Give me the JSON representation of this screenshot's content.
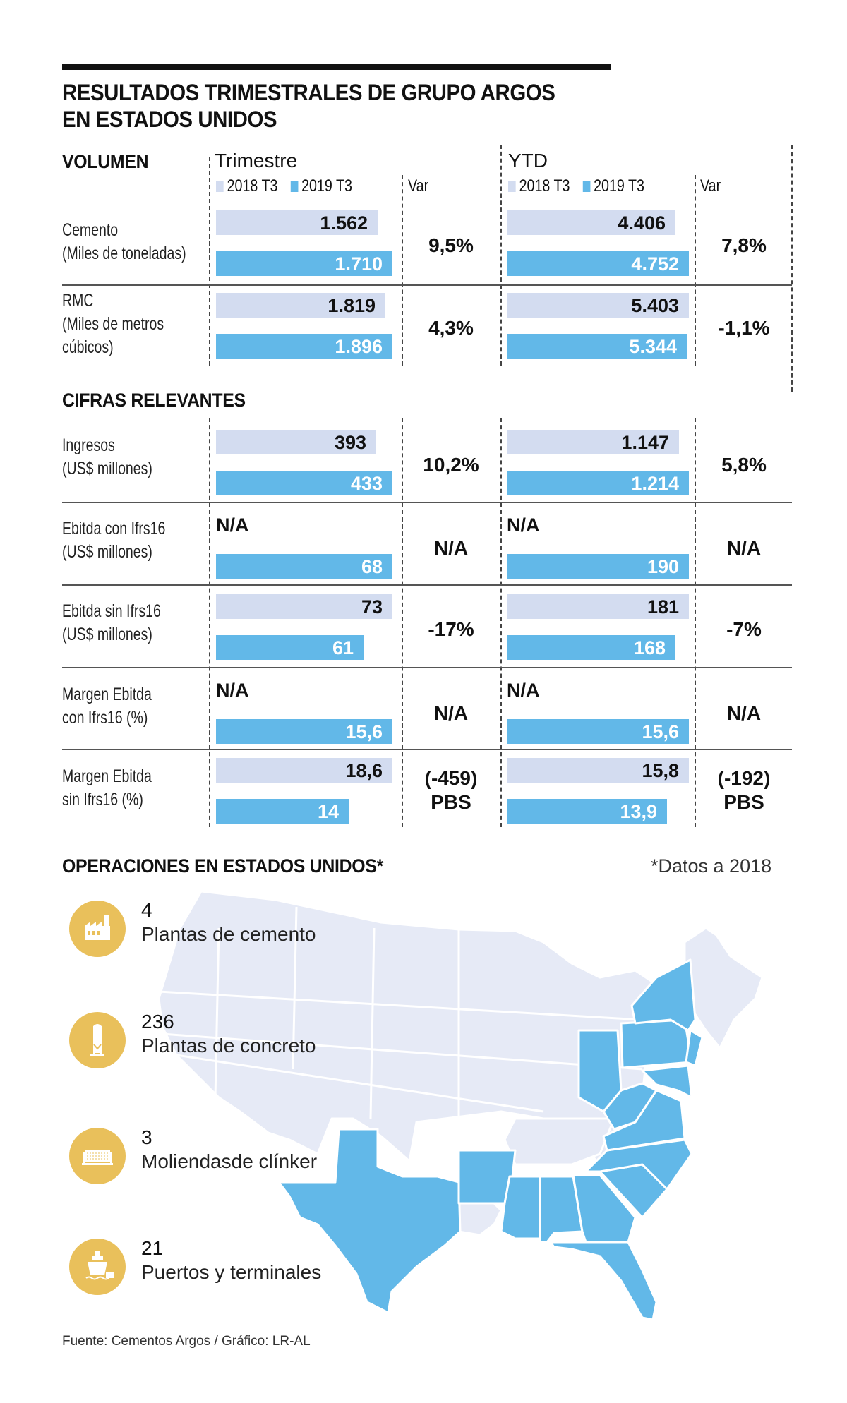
{
  "title": {
    "line1": "RESULTADOS TRIMESTRALES DE GRUPO ARGOS",
    "line2": "EN ESTADOS UNIDOS"
  },
  "colors": {
    "bar_2018": "#d3dcf0",
    "bar_2019": "#62b8e8",
    "icon_circle": "#e9c05b",
    "map_base": "#e6eaf6",
    "map_highlight": "#62b8e8"
  },
  "headers": {
    "trimestre": "Trimestre",
    "ytd": "YTD",
    "var": "Var",
    "legend_2018": "2018 T3",
    "legend_2019": "2019 T3"
  },
  "sections": {
    "volumen": "VOLUMEN",
    "cifras": "CIFRAS RELEVANTES",
    "operaciones": "OPERACIONES EN ESTADOS UNIDOS*",
    "operaciones_note": "*Datos a 2018"
  },
  "chart_data": {
    "type": "bar",
    "title": "RESULTADOS TRIMESTRALES DE GRUPO ARGOS EN ESTADOS UNIDOS",
    "series_names": [
      "2018 T3",
      "2019 T3"
    ],
    "rows": [
      {
        "group": "VOLUMEN",
        "label_line1": "Cemento",
        "label_line2": "(Miles de toneladas)",
        "label_line3": "",
        "trimestre": {
          "v2018": 1562,
          "t2018": "1.562",
          "v2019": 1710,
          "t2019": "1.710",
          "var": "9,5%",
          "var2": ""
        },
        "ytd": {
          "v2018": 4406,
          "t2018": "4.406",
          "v2019": 4752,
          "t2019": "4.752",
          "var": "7,8%",
          "var2": ""
        }
      },
      {
        "group": "VOLUMEN",
        "label_line1": "RMC",
        "label_line2": "(Miles de metros",
        "label_line3": "cúbicos)",
        "trimestre": {
          "v2018": 1819,
          "t2018": "1.819",
          "v2019": 1896,
          "t2019": "1.896",
          "var": "4,3%",
          "var2": ""
        },
        "ytd": {
          "v2018": 5403,
          "t2018": "5.403",
          "v2019": 5344,
          "t2019": "5.344",
          "var": "-1,1%",
          "var2": ""
        }
      },
      {
        "group": "CIFRAS RELEVANTES",
        "label_line1": "Ingresos",
        "label_line2": "(US$ millones)",
        "label_line3": "",
        "trimestre": {
          "v2018": 393,
          "t2018": "393",
          "v2019": 433,
          "t2019": "433",
          "var": "10,2%",
          "var2": ""
        },
        "ytd": {
          "v2018": 1147,
          "t2018": "1.147",
          "v2019": 1214,
          "t2019": "1.214",
          "var": "5,8%",
          "var2": ""
        }
      },
      {
        "group": "CIFRAS RELEVANTES",
        "label_line1": "Ebitda con Ifrs16",
        "label_line2": "(US$ millones)",
        "label_line3": "",
        "trimestre": {
          "v2018": null,
          "t2018": "N/A",
          "v2019": 68,
          "t2019": "68",
          "var": "N/A",
          "var2": ""
        },
        "ytd": {
          "v2018": null,
          "t2018": "N/A",
          "v2019": 190,
          "t2019": "190",
          "var": "N/A",
          "var2": ""
        }
      },
      {
        "group": "CIFRAS RELEVANTES",
        "label_line1": "Ebitda sin Ifrs16",
        "label_line2": "(US$ millones)",
        "label_line3": "",
        "trimestre": {
          "v2018": 73,
          "t2018": "73",
          "v2019": 61,
          "t2019": "61",
          "var": "-17%",
          "var2": ""
        },
        "ytd": {
          "v2018": 181,
          "t2018": "181",
          "v2019": 168,
          "t2019": "168",
          "var": "-7%",
          "var2": ""
        }
      },
      {
        "group": "CIFRAS RELEVANTES",
        "label_line1": "Margen Ebitda",
        "label_line2": "con Ifrs16 (%)",
        "label_line3": "",
        "trimestre": {
          "v2018": null,
          "t2018": "N/A",
          "v2019": 15.6,
          "t2019": "15,6",
          "var": "N/A",
          "var2": ""
        },
        "ytd": {
          "v2018": null,
          "t2018": "N/A",
          "v2019": 15.6,
          "t2019": "15,6",
          "var": "N/A",
          "var2": ""
        }
      },
      {
        "group": "CIFRAS RELEVANTES",
        "label_line1": "Margen Ebitda",
        "label_line2": "sin Ifrs16 (%)",
        "label_line3": "",
        "trimestre": {
          "v2018": 18.6,
          "t2018": "18,6",
          "v2019": 14,
          "t2019": "14",
          "var": "(-459)",
          "var2": "PBS"
        },
        "ytd": {
          "v2018": 15.8,
          "t2018": "15,8",
          "v2019": 13.9,
          "t2019": "13,9",
          "var": "(-192)",
          "var2": "PBS"
        }
      }
    ]
  },
  "operations": [
    {
      "icon": "factory-icon",
      "value": "4",
      "label": "Plantas  de cemento"
    },
    {
      "icon": "silo-icon",
      "value": "236",
      "label": "Plantas  de concreto"
    },
    {
      "icon": "mill-icon",
      "value": "3",
      "label": "Moliendasde clínker"
    },
    {
      "icon": "ship-icon",
      "value": "21",
      "label": "Puertos  y terminales"
    }
  ],
  "map": {
    "highlighted_states": [
      "Texas",
      "Arkansas",
      "Mississippi",
      "Alabama",
      "Georgia",
      "Florida",
      "South Carolina",
      "North Carolina",
      "Virginia",
      "West Virginia",
      "Ohio",
      "Pennsylvania",
      "New York",
      "New Jersey",
      "Maryland",
      "Delaware"
    ]
  },
  "footer": "Fuente: Cementos Argos / Gráfico: LR-AL"
}
